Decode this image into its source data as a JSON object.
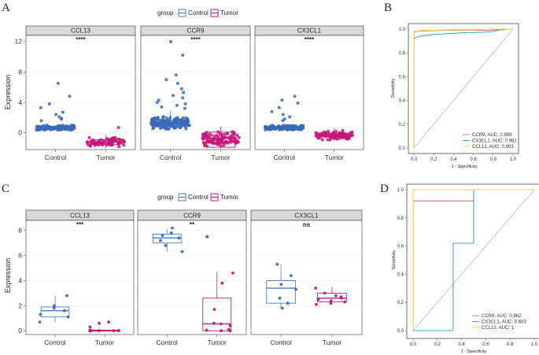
{
  "colors": {
    "control": "#3a6ab8",
    "tumor": "#c8177a",
    "control_box": "#4a7ec2",
    "tumor_box": "#c8177a",
    "strip": "#d9d9d9",
    "roc_ccr9": "#e0737a",
    "roc_cx3cl1": "#3aaec8",
    "roc_ccl13": "#f2d24a",
    "diag": "#b8b8b8"
  },
  "chart_data": [
    {
      "panel": "A",
      "type": "box+jitter",
      "legend_title": "group",
      "legend_items": [
        "Control",
        "Tumor"
      ],
      "ylabel": "Expression",
      "yticks": [
        0,
        4,
        8,
        12
      ],
      "ylim": [
        -2.2,
        12.8
      ],
      "facets": [
        {
          "title": "CCL13",
          "signif": "****",
          "xticks": [
            "Control",
            "Tumor"
          ],
          "groups": [
            {
              "name": "Control",
              "q1": 0.5,
              "median": 0.6,
              "q3": 0.75,
              "wlo": 0.4,
              "whi": 0.9,
              "pts_min": 0.4,
              "pts_max": 1.4,
              "outliers": [
                6.5,
                4.8,
                3.8,
                3.3,
                2.7,
                2.4,
                2.1,
                1.9,
                1.8,
                1.6
              ],
              "n": 140
            },
            {
              "name": "Tumor",
              "q1": -1.55,
              "median": -1.2,
              "q3": -0.9,
              "wlo": -2.0,
              "whi": -0.3,
              "pts_min": -2.0,
              "pts_max": -0.3,
              "outliers": [
                0.7
              ],
              "n": 90
            }
          ]
        },
        {
          "title": "CCR9",
          "signif": "****",
          "xticks": [
            "Control",
            "Tumor"
          ],
          "groups": [
            {
              "name": "Control",
              "q1": 0.8,
              "median": 1.2,
              "q3": 1.7,
              "wlo": 0.5,
              "whi": 2.9,
              "pts_min": 0.5,
              "pts_max": 3.0,
              "outliers": [
                12.0,
                10.2,
                7.6,
                7.0,
                6.5,
                5.8,
                5.3,
                4.9,
                4.6,
                4.3,
                4.0,
                3.8,
                3.6,
                3.4,
                3.2
              ],
              "n": 180
            },
            {
              "name": "Tumor",
              "q1": -1.9,
              "median": -0.7,
              "q3": 0.1,
              "wlo": -2.1,
              "whi": 0.8,
              "pts_min": -2.1,
              "pts_max": 0.8,
              "outliers": [],
              "n": 110
            }
          ]
        },
        {
          "title": "CX3CL1",
          "signif": "****",
          "xticks": [
            "Control",
            "Tumor"
          ],
          "groups": [
            {
              "name": "Control",
              "q1": 0.5,
              "median": 0.65,
              "q3": 0.85,
              "wlo": 0.4,
              "whi": 1.3,
              "pts_min": 0.4,
              "pts_max": 1.4,
              "outliers": [
                4.8,
                4.3,
                3.9,
                3.3,
                2.8,
                2.4,
                2.1,
                1.8,
                1.6
              ],
              "n": 140
            },
            {
              "name": "Tumor",
              "q1": -0.55,
              "median": -0.3,
              "q3": -0.05,
              "wlo": -1.0,
              "whi": 0.6,
              "pts_min": -1.0,
              "pts_max": 0.6,
              "outliers": [],
              "n": 100
            }
          ]
        }
      ]
    },
    {
      "panel": "B",
      "type": "line",
      "subtype": "roc",
      "xlabel": "1 - Specificity",
      "ylabel": "Sensitivity",
      "xticks": [
        0.0,
        0.2,
        0.4,
        0.6,
        0.8,
        1.0
      ],
      "yticks": [
        0.0,
        0.2,
        0.4,
        0.6,
        0.8,
        1.0
      ],
      "xlim": [
        0,
        1
      ],
      "ylim": [
        0,
        1
      ],
      "series": [
        {
          "name": "CCR9, AUC: 0.999",
          "color_key": "roc_ccr9",
          "x": [
            0,
            0,
            0.02,
            0.1,
            0.3,
            0.5,
            0.7,
            0.9,
            0.95,
            1
          ],
          "y": [
            0,
            0.97,
            0.98,
            0.985,
            0.99,
            0.99,
            0.99,
            0.995,
            1,
            1
          ]
        },
        {
          "name": "CX3CL1, AUC: 0.982",
          "color_key": "roc_cx3cl1",
          "x": [
            0,
            0,
            0.02,
            0.05,
            0.1,
            0.15,
            0.2,
            0.3,
            0.4,
            0.5,
            0.6,
            0.7,
            0.8,
            0.85,
            0.88,
            0.9,
            1
          ],
          "y": [
            0,
            0.92,
            0.93,
            0.94,
            0.945,
            0.95,
            0.955,
            0.96,
            0.965,
            0.97,
            0.97,
            0.975,
            0.98,
            0.99,
            0.995,
            1,
            1
          ]
        },
        {
          "name": "CCL13, AUC: 0.993",
          "color_key": "roc_ccl13",
          "x": [
            0,
            0,
            0.05,
            0.1,
            0.2,
            0.4,
            0.6,
            0.8,
            1
          ],
          "y": [
            0,
            0.98,
            0.985,
            0.99,
            0.99,
            0.995,
            0.995,
            1,
            1
          ]
        }
      ]
    },
    {
      "panel": "C",
      "type": "box+jitter",
      "legend_title": "group",
      "legend_items": [
        "Control",
        "Tumor"
      ],
      "ylabel": "Expression",
      "yticks": [
        0,
        2,
        4,
        6,
        8
      ],
      "ylim": [
        -0.3,
        8.8
      ],
      "facets": [
        {
          "title": "CCL13",
          "signif": "***",
          "xticks": [
            "Control",
            "Tumor"
          ],
          "groups": [
            {
              "name": "Control",
              "q1": 1.1,
              "median": 1.6,
              "q3": 1.9,
              "wlo": 0.7,
              "whi": 2.8,
              "points": [
                2.8,
                2.0,
                1.8,
                1.6,
                1.3,
                1.1,
                0.7
              ]
            },
            {
              "name": "Tumor",
              "q1": 0.0,
              "median": 0.02,
              "q3": 0.05,
              "wlo": 0.0,
              "whi": 0.1,
              "points": [
                0.7,
                0.6,
                0.3,
                0.05,
                0.02,
                0.0,
                0.0,
                0.0,
                0.0,
                0.0,
                0.0
              ]
            }
          ]
        },
        {
          "title": "CCR9",
          "signif": "**",
          "xticks": [
            "Control",
            "Tumor"
          ],
          "groups": [
            {
              "name": "Control",
              "q1": 7.0,
              "median": 7.4,
              "q3": 7.7,
              "wlo": 6.3,
              "whi": 8.1,
              "points": [
                8.2,
                7.8,
                7.6,
                7.4,
                7.2,
                6.8,
                6.3
              ]
            },
            {
              "name": "Tumor",
              "q1": 0.0,
              "median": 0.55,
              "q3": 2.6,
              "wlo": 0.0,
              "whi": 4.7,
              "points": [
                7.5,
                4.6,
                3.8,
                1.7,
                0.6,
                0.55,
                0.4,
                0.1,
                0.05,
                0.0,
                0.0
              ]
            }
          ]
        },
        {
          "title": "CX3CL1",
          "signif": "ns",
          "xticks": [
            "Control",
            "Tumor"
          ],
          "groups": [
            {
              "name": "Control",
              "q1": 2.2,
              "median": 3.4,
              "q3": 4.0,
              "wlo": 1.8,
              "whi": 5.3,
              "points": [
                5.3,
                4.4,
                3.7,
                3.3,
                2.6,
                2.2,
                1.8
              ]
            },
            {
              "name": "Tumor",
              "q1": 2.3,
              "median": 2.6,
              "q3": 3.0,
              "wlo": 2.1,
              "whi": 3.5,
              "points": [
                3.4,
                3.0,
                2.8,
                2.7,
                2.6,
                2.5,
                2.4,
                2.3,
                2.2,
                2.1
              ]
            }
          ]
        }
      ]
    },
    {
      "panel": "D",
      "type": "line",
      "subtype": "roc",
      "xlabel": "1 - Specificity",
      "ylabel": "Sensitivity",
      "xticks": [
        0.0,
        0.2,
        0.4,
        0.6,
        0.8,
        1.0
      ],
      "yticks": [
        0.0,
        0.2,
        0.4,
        0.6,
        0.8,
        1.0
      ],
      "xlim": [
        0,
        1
      ],
      "ylim": [
        0,
        1
      ],
      "series": [
        {
          "name": "CCR9, AUC: 0.962",
          "color_key": "roc_ccr9",
          "x": [
            0,
            0,
            0.5,
            0.5,
            1
          ],
          "y": [
            0,
            0.92,
            0.92,
            1,
            1
          ]
        },
        {
          "name": "CX3CL1, AUC: 0.603",
          "color_key": "roc_cx3cl1",
          "x": [
            0,
            0.33,
            0.33,
            0.5,
            0.5,
            1
          ],
          "y": [
            0,
            0,
            0.62,
            0.62,
            1,
            1
          ]
        },
        {
          "name": "CCL13, AUC: 1",
          "color_key": "roc_ccl13",
          "x": [
            0,
            0,
            1
          ],
          "y": [
            0,
            1,
            1
          ]
        }
      ]
    }
  ]
}
